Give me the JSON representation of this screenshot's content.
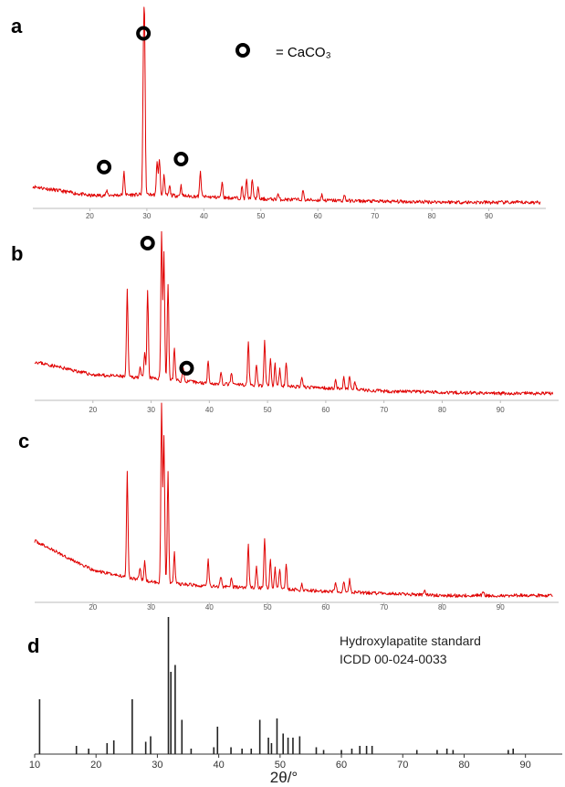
{
  "chart_data": [
    {
      "panel": "a",
      "type": "line",
      "xlim": [
        10,
        100
      ],
      "xticks": [
        20,
        30,
        40,
        50,
        60,
        70,
        80,
        90
      ],
      "series_color": "#e00000",
      "baseline": {
        "x": [
          10,
          20,
          30,
          40,
          50,
          60,
          70,
          80,
          90,
          99
        ],
        "y": [
          16,
          8,
          9,
          7,
          5,
          4,
          3,
          2.5,
          2,
          2
        ]
      },
      "peaks": [
        {
          "x": 23.0,
          "y": 4
        },
        {
          "x": 26.0,
          "y": 20
        },
        {
          "x": 29.4,
          "y": 95
        },
        {
          "x": 29.6,
          "y": 130
        },
        {
          "x": 31.8,
          "y": 30
        },
        {
          "x": 32.2,
          "y": 32
        },
        {
          "x": 33.0,
          "y": 18
        },
        {
          "x": 34.0,
          "y": 8
        },
        {
          "x": 36.0,
          "y": 9
        },
        {
          "x": 39.4,
          "y": 22
        },
        {
          "x": 43.2,
          "y": 14
        },
        {
          "x": 46.7,
          "y": 10
        },
        {
          "x": 47.5,
          "y": 16
        },
        {
          "x": 48.5,
          "y": 18
        },
        {
          "x": 49.5,
          "y": 10
        },
        {
          "x": 53.0,
          "y": 5
        },
        {
          "x": 57.4,
          "y": 8
        },
        {
          "x": 60.7,
          "y": 5
        },
        {
          "x": 64.7,
          "y": 5
        }
      ],
      "markers": [
        {
          "x": 29.4,
          "y": 150
        },
        {
          "x": 22.5,
          "y": 33
        },
        {
          "x": 36.0,
          "y": 40
        }
      ]
    },
    {
      "panel": "b",
      "type": "line",
      "xlim": [
        10,
        100
      ],
      "xticks": [
        20,
        30,
        40,
        50,
        60,
        70,
        80,
        90
      ],
      "series_color": "#e00000",
      "baseline": {
        "x": [
          10,
          20,
          30,
          40,
          50,
          60,
          70,
          80,
          90,
          99
        ],
        "y": [
          32,
          20,
          17,
          12,
          10,
          8,
          5,
          4,
          3,
          3
        ]
      },
      "peaks": [
        {
          "x": 25.9,
          "y": 80
        },
        {
          "x": 28.1,
          "y": 10
        },
        {
          "x": 28.9,
          "y": 22
        },
        {
          "x": 29.4,
          "y": 80
        },
        {
          "x": 31.8,
          "y": 135
        },
        {
          "x": 32.2,
          "y": 115
        },
        {
          "x": 32.9,
          "y": 88
        },
        {
          "x": 34.0,
          "y": 30
        },
        {
          "x": 35.5,
          "y": 12
        },
        {
          "x": 39.8,
          "y": 22
        },
        {
          "x": 42.0,
          "y": 10
        },
        {
          "x": 43.8,
          "y": 10
        },
        {
          "x": 46.7,
          "y": 40
        },
        {
          "x": 48.1,
          "y": 20
        },
        {
          "x": 49.5,
          "y": 40
        },
        {
          "x": 50.5,
          "y": 25
        },
        {
          "x": 51.3,
          "y": 20
        },
        {
          "x": 52.1,
          "y": 15
        },
        {
          "x": 53.2,
          "y": 22
        },
        {
          "x": 55.9,
          "y": 8
        },
        {
          "x": 61.7,
          "y": 8
        },
        {
          "x": 63.1,
          "y": 10
        },
        {
          "x": 64.1,
          "y": 12
        },
        {
          "x": 65.0,
          "y": 8
        }
      ],
      "markers": [
        {
          "x": 29.4,
          "y": 140
        },
        {
          "x": 36.1,
          "y": 26
        }
      ]
    },
    {
      "panel": "c",
      "type": "line",
      "xlim": [
        10,
        100
      ],
      "xticks": [
        20,
        30,
        40,
        50,
        60,
        70,
        80,
        90
      ],
      "series_color": "#e00000",
      "baseline": {
        "x": [
          10,
          20,
          30,
          40,
          50,
          60,
          70,
          80,
          90,
          99
        ],
        "y": [
          55,
          27,
          16,
          12,
          10,
          7,
          5,
          3,
          3,
          3
        ]
      },
      "peaks": [
        {
          "x": 25.9,
          "y": 100
        },
        {
          "x": 28.1,
          "y": 10
        },
        {
          "x": 28.9,
          "y": 18
        },
        {
          "x": 31.8,
          "y": 170
        },
        {
          "x": 32.2,
          "y": 140
        },
        {
          "x": 32.9,
          "y": 105
        },
        {
          "x": 34.0,
          "y": 30
        },
        {
          "x": 39.8,
          "y": 25
        },
        {
          "x": 42.0,
          "y": 10
        },
        {
          "x": 43.8,
          "y": 8
        },
        {
          "x": 46.7,
          "y": 40
        },
        {
          "x": 48.1,
          "y": 20
        },
        {
          "x": 49.5,
          "y": 48
        },
        {
          "x": 50.5,
          "y": 28
        },
        {
          "x": 51.3,
          "y": 20
        },
        {
          "x": 52.1,
          "y": 18
        },
        {
          "x": 53.2,
          "y": 25
        },
        {
          "x": 55.9,
          "y": 6
        },
        {
          "x": 61.7,
          "y": 8
        },
        {
          "x": 63.1,
          "y": 10
        },
        {
          "x": 64.1,
          "y": 12
        },
        {
          "x": 77.0,
          "y": 6
        },
        {
          "x": 87.0,
          "y": 5
        }
      ],
      "markers": []
    },
    {
      "panel": "d",
      "type": "bar",
      "xlim": [
        10,
        96
      ],
      "xticks": [
        10,
        20,
        30,
        40,
        50,
        60,
        70,
        80,
        90
      ],
      "xlabel": "2θ/°",
      "title_lines": [
        "Hydroxylapatite standard",
        "ICDD 00-024-0033"
      ],
      "lines": [
        {
          "x": 10.8,
          "y": 40
        },
        {
          "x": 16.8,
          "y": 6
        },
        {
          "x": 18.8,
          "y": 4
        },
        {
          "x": 21.8,
          "y": 8
        },
        {
          "x": 22.9,
          "y": 10
        },
        {
          "x": 25.9,
          "y": 40
        },
        {
          "x": 28.1,
          "y": 9
        },
        {
          "x": 28.9,
          "y": 13
        },
        {
          "x": 31.8,
          "y": 100
        },
        {
          "x": 32.2,
          "y": 60
        },
        {
          "x": 32.9,
          "y": 65
        },
        {
          "x": 34.0,
          "y": 25
        },
        {
          "x": 35.5,
          "y": 4
        },
        {
          "x": 39.2,
          "y": 5
        },
        {
          "x": 39.8,
          "y": 20
        },
        {
          "x": 42.0,
          "y": 5
        },
        {
          "x": 43.8,
          "y": 4
        },
        {
          "x": 45.3,
          "y": 4
        },
        {
          "x": 46.7,
          "y": 25
        },
        {
          "x": 48.1,
          "y": 12
        },
        {
          "x": 48.6,
          "y": 8
        },
        {
          "x": 49.5,
          "y": 26
        },
        {
          "x": 50.5,
          "y": 15
        },
        {
          "x": 51.3,
          "y": 12
        },
        {
          "x": 52.1,
          "y": 12
        },
        {
          "x": 53.2,
          "y": 13
        },
        {
          "x": 55.9,
          "y": 5
        },
        {
          "x": 57.1,
          "y": 3
        },
        {
          "x": 60.0,
          "y": 3
        },
        {
          "x": 61.7,
          "y": 4
        },
        {
          "x": 63.0,
          "y": 6
        },
        {
          "x": 64.1,
          "y": 6
        },
        {
          "x": 65.0,
          "y": 6
        },
        {
          "x": 72.3,
          "y": 3
        },
        {
          "x": 75.6,
          "y": 3
        },
        {
          "x": 77.2,
          "y": 4
        },
        {
          "x": 78.2,
          "y": 3
        },
        {
          "x": 87.2,
          "y": 3
        },
        {
          "x": 88.0,
          "y": 4
        }
      ]
    }
  ],
  "legend": {
    "symbol": "ring-marker-icon",
    "label": "= CaCO₃"
  },
  "panel_letters": [
    "a",
    "b",
    "c",
    "d"
  ]
}
